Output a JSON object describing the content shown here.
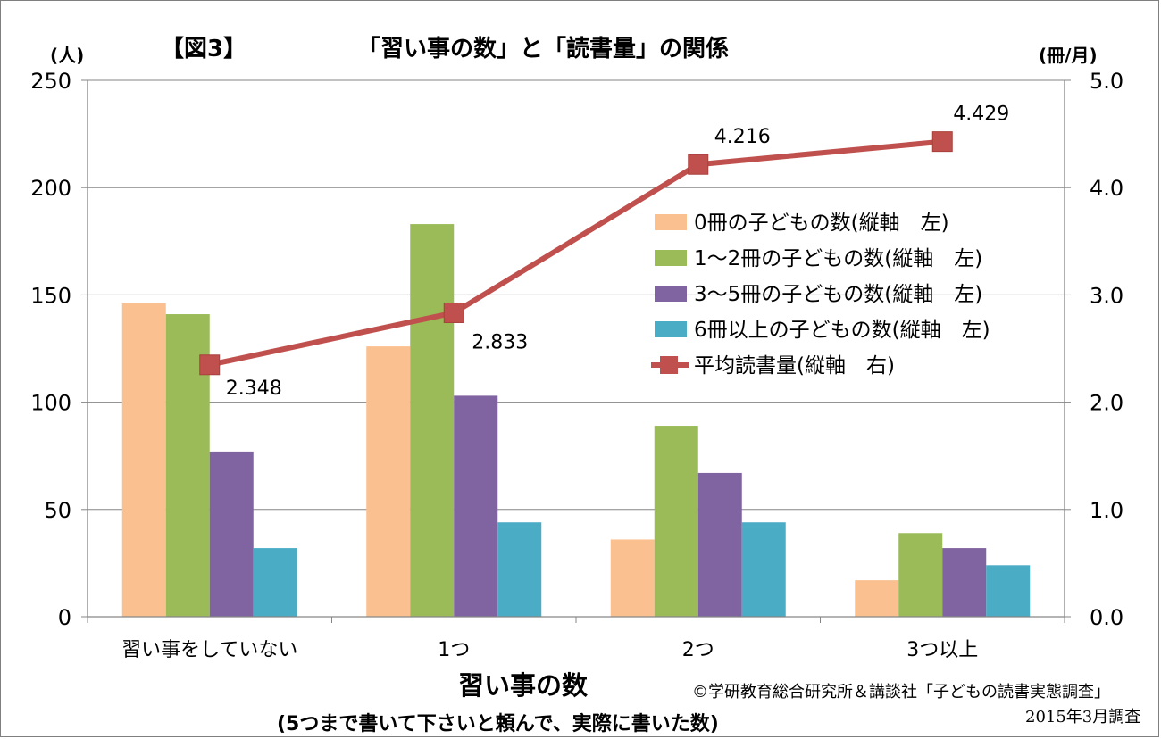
{
  "header": {
    "fig_label": "【図3】",
    "title": "「習い事の数」と「読書量」の関係",
    "left_unit": "(人)",
    "right_unit": "(冊/月)"
  },
  "footer": {
    "xlabel": "習い事の数",
    "xsub": "(5つまで書いて下さいと頼んで、実際に書いた数)",
    "credit": "©学研教育総合研究所＆講談社「子どもの読書実態調査」",
    "survey_date": "2015年3月調査"
  },
  "chart_data": {
    "type": "bar",
    "categories": [
      "習い事をしていない",
      "1つ",
      "2つ",
      "3つ以上"
    ],
    "series": [
      {
        "name": "0冊の子どもの数(縦軸　左)",
        "values": [
          146,
          126,
          36,
          17
        ],
        "color": "#FAC090",
        "axis": "left"
      },
      {
        "name": "1～2冊の子どもの数(縦軸　左)",
        "values": [
          141,
          183,
          89,
          39
        ],
        "color": "#9BBB59",
        "axis": "left"
      },
      {
        "name": "3～5冊の子どもの数(縦軸　左)",
        "values": [
          77,
          103,
          67,
          32
        ],
        "color": "#8064A2",
        "axis": "left"
      },
      {
        "name": "6冊以上の子どもの数(縦軸　左)",
        "values": [
          32,
          44,
          44,
          24
        ],
        "color": "#4BACC6",
        "axis": "left"
      }
    ],
    "line_series": {
      "name": "平均読書量(縦軸　右)",
      "type": "line",
      "values": [
        2.348,
        2.833,
        4.216,
        4.429
      ],
      "labels": [
        "2.348",
        "2.833",
        "4.216",
        "4.429"
      ],
      "color": "#C0504D",
      "axis": "right"
    },
    "y_left": {
      "range": [
        0,
        250
      ],
      "ticks": [
        "0",
        "50",
        "100",
        "150",
        "200",
        "250"
      ]
    },
    "y_right": {
      "range": [
        0,
        5
      ],
      "ticks": [
        "0.0",
        "1.0",
        "2.0",
        "3.0",
        "4.0",
        "5.0"
      ]
    },
    "grid": true,
    "legend_position": "right"
  }
}
